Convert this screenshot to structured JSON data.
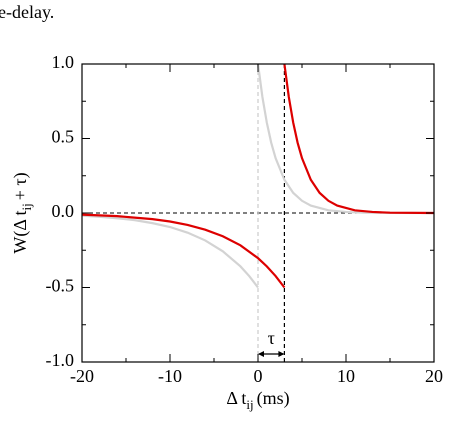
{
  "caption_fragment": "e-delay.",
  "chart_data": {
    "type": "line",
    "x_label": {
      "main": "Δ t",
      "sub": "ij",
      "rest": "(ms)"
    },
    "y_label": {
      "main": "W(Δ t",
      "sub": "ij",
      "rest": "+ τ)"
    },
    "annotation": "τ",
    "xlim": [
      -20,
      20
    ],
    "ylim": [
      -1,
      1
    ],
    "xticks": [
      -20,
      -10,
      0,
      10,
      20
    ],
    "yticks": [
      {
        "value": -1,
        "label": "-1.0"
      },
      -0.5,
      {
        "value": 0,
        "label": "0.0"
      },
      0.5,
      {
        "value": 1,
        "label": "1.0"
      }
    ],
    "xminor": [
      -15,
      -5,
      5,
      15
    ],
    "yminor": [
      -0.75,
      -0.25,
      0.25,
      0.75
    ],
    "hline": {
      "y": 0,
      "color": "#000000"
    },
    "vlines": [
      {
        "x": 0,
        "color": "#cccccc"
      },
      {
        "x": 3,
        "color": "#000000"
      }
    ],
    "series": [
      {
        "color": "#d3d3d3",
        "x": [
          -20,
          -18,
          -16,
          -14,
          -12,
          -10,
          -8,
          -6,
          -4,
          -2,
          -1,
          0,
          null,
          0,
          0.5,
          1,
          1.5,
          2,
          3,
          4,
          5,
          6,
          8,
          10,
          12,
          15,
          20
        ],
        "values": [
          -0.018,
          -0.025,
          -0.035,
          -0.048,
          -0.068,
          -0.094,
          -0.132,
          -0.184,
          -0.257,
          -0.358,
          -0.423,
          -0.5,
          null,
          1,
          0.779,
          0.607,
          0.472,
          0.368,
          0.223,
          0.135,
          0.082,
          0.05,
          0.018,
          0.007,
          0.002,
          0.001,
          0
        ]
      },
      {
        "color": "#dd0000",
        "x": [
          -20,
          -16,
          -12,
          -10,
          -8,
          -6,
          -4,
          -2,
          0,
          1,
          2,
          3,
          null,
          3,
          3.5,
          4,
          4.5,
          5,
          6,
          7,
          8,
          9,
          11,
          13,
          15,
          20
        ],
        "values": [
          -0.011,
          -0.021,
          -0.041,
          -0.057,
          -0.08,
          -0.112,
          -0.156,
          -0.217,
          -0.303,
          -0.358,
          -0.423,
          -0.5,
          null,
          1,
          0.779,
          0.607,
          0.472,
          0.368,
          0.223,
          0.135,
          0.082,
          0.05,
          0.018,
          0.007,
          0.002,
          0
        ]
      }
    ]
  }
}
